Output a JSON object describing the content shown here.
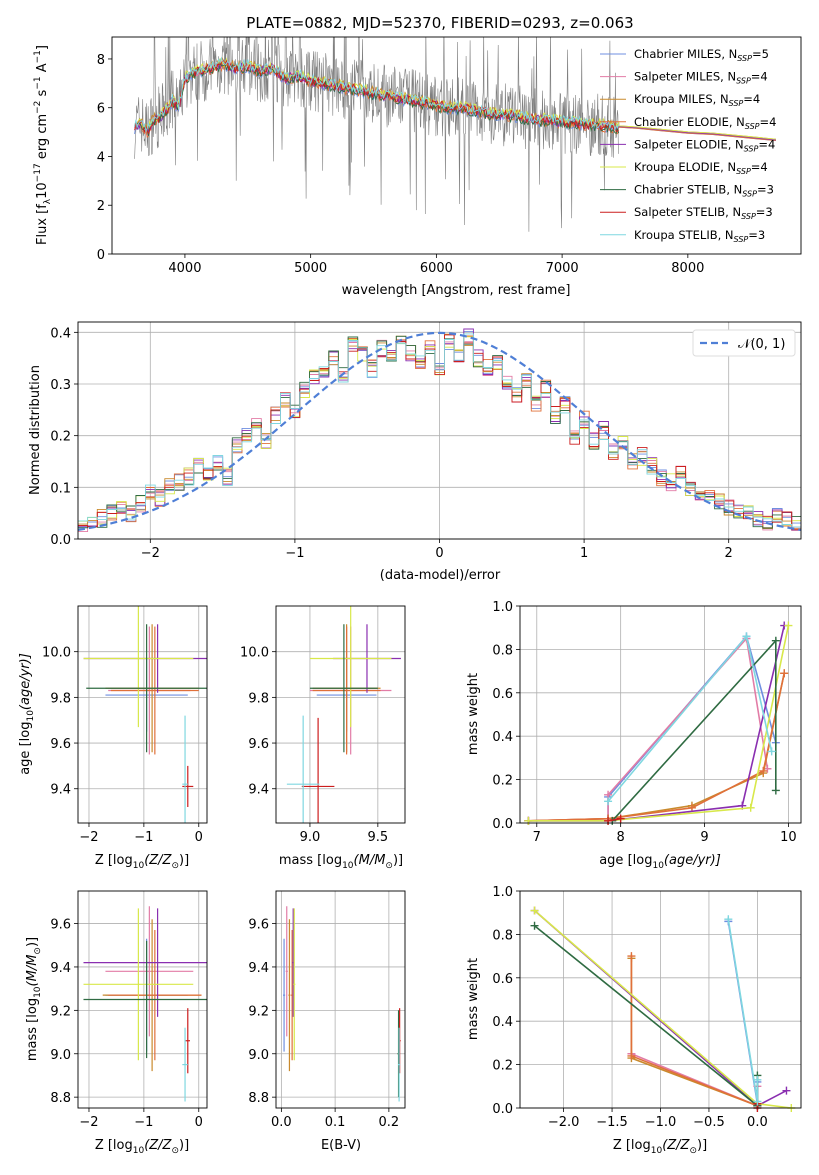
{
  "figure": {
    "title": "PLATE=0882, MJD=52370, FIBERID=0293, z=0.063"
  },
  "colors": {
    "chabrier_miles": "#6f8fe0",
    "salpeter_miles": "#e27ca6",
    "kroupa_miles": "#c98a2d",
    "chabrier_elodie": "#e0703a",
    "salpeter_elodie": "#8a2fb0",
    "kroupa_elodie": "#d8e84a",
    "chabrier_stelib": "#2f6b42",
    "salpeter_stelib": "#cc1e1e",
    "kroupa_stelib": "#7fd7e0",
    "data": "#7f7f7f",
    "normal": "#4f7fd6"
  },
  "chart_data": [
    {
      "id": "spectrum",
      "type": "line",
      "title": "PLATE=0882, MJD=52370, FIBERID=0293, z=0.063",
      "xlabel": "wavelength [Angstrom, rest frame]",
      "ylabel_main": "Flux [f",
      "ylabel_sub1": "λ",
      "ylabel_mid": "10",
      "ylabel_sup1": "−17",
      "ylabel_mid2": " erg cm",
      "ylabel_sup2": "−2",
      "ylabel_mid3": " s",
      "ylabel_sup3": "−1",
      "ylabel_mid4": " A",
      "ylabel_sup4": "−1",
      "ylabel_end": "]",
      "xlim": [
        3420,
        8900
      ],
      "ylim": [
        0,
        8.9
      ],
      "xticks": [
        4000,
        5000,
        6000,
        7000,
        8000
      ],
      "xtick_labels": [
        "4000",
        "5000",
        "6000",
        "7000",
        "8000"
      ],
      "yticks": [
        0,
        2,
        4,
        6,
        8
      ],
      "ytick_labels": [
        "0",
        "2",
        "4",
        "6",
        "8"
      ],
      "legend_position": "upper-right",
      "legend": [
        {
          "name": "Chabrier MILES, N",
          "sub": "SSP",
          "tail": "=5",
          "color": "#6f8fe0"
        },
        {
          "name": "Salpeter MILES, N",
          "sub": "SSP",
          "tail": "=4",
          "color": "#e27ca6"
        },
        {
          "name": "Kroupa MILES, N",
          "sub": "SSP",
          "tail": "=4",
          "color": "#c98a2d"
        },
        {
          "name": "Chabrier ELODIE, N",
          "sub": "SSP",
          "tail": "=4",
          "color": "#e0703a"
        },
        {
          "name": "Salpeter ELODIE, N",
          "sub": "SSP",
          "tail": "=4",
          "color": "#8a2fb0"
        },
        {
          "name": "Kroupa ELODIE, N",
          "sub": "SSP",
          "tail": "=4",
          "color": "#d8e84a"
        },
        {
          "name": "Chabrier STELIB, N",
          "sub": "SSP",
          "tail": "=3",
          "color": "#2f6b42"
        },
        {
          "name": "Salpeter STELIB, N",
          "sub": "SSP",
          "tail": "=3",
          "color": "#cc1e1e"
        },
        {
          "name": "Kroupa STELIB, N",
          "sub": "SSP",
          "tail": "=3",
          "color": "#7fd7e0"
        }
      ],
      "model_x": [
        3600,
        3650,
        3700,
        3750,
        3800,
        3850,
        3900,
        3950,
        4000,
        4100,
        4200,
        4300,
        4400,
        4500,
        4600,
        4700,
        4800,
        4900,
        5000,
        5100,
        5200,
        5300,
        5400,
        5500,
        5600,
        5700,
        5800,
        5900,
        6000,
        6100,
        6200,
        6300,
        6400,
        6500,
        6600,
        6700,
        6800,
        6900,
        7000,
        7100,
        7200,
        7300,
        7400,
        7450
      ],
      "model_y": [
        5.2,
        5.4,
        5.0,
        5.5,
        5.6,
        5.9,
        6.3,
        6.0,
        7.2,
        7.5,
        7.6,
        7.8,
        7.6,
        7.7,
        7.5,
        7.6,
        7.2,
        7.3,
        7.1,
        7.0,
        6.9,
        6.8,
        6.7,
        6.6,
        6.5,
        6.4,
        6.3,
        6.2,
        6.1,
        6.0,
        6.0,
        5.9,
        5.8,
        5.7,
        5.7,
        5.6,
        5.5,
        5.5,
        5.4,
        5.4,
        5.3,
        5.3,
        5.2,
        5.2
      ],
      "model_ext_x": [
        7450,
        7600,
        7800,
        8000,
        8200,
        8400,
        8600,
        8700
      ],
      "model_ext_y": [
        5.2,
        5.15,
        5.05,
        4.95,
        4.9,
        4.8,
        4.7,
        4.65
      ],
      "data_x_range": [
        3600,
        7450
      ]
    },
    {
      "id": "residuals",
      "type": "step",
      "xlabel": "(data-model)/error",
      "ylabel": "Normed distribution",
      "xlim": [
        -2.5,
        2.5
      ],
      "ylim": [
        0,
        0.42
      ],
      "xticks": [
        -2,
        -1,
        0,
        1,
        2
      ],
      "xtick_labels": [
        "−2",
        "−1",
        "0",
        "1",
        "2"
      ],
      "yticks": [
        0.0,
        0.1,
        0.2,
        0.3,
        0.4
      ],
      "ytick_labels": [
        "0.0",
        "0.1",
        "0.2",
        "0.3",
        "0.4"
      ],
      "legend": [
        {
          "name": "𝒩(0, 1)",
          "color": "#4f7fd6",
          "style": "dashed"
        }
      ],
      "legend_position": "upper-right",
      "bin_width": 0.1,
      "bin_start": -2.5,
      "base_hist": [
        0.02,
        0.03,
        0.04,
        0.05,
        0.06,
        0.05,
        0.07,
        0.09,
        0.08,
        0.1,
        0.11,
        0.12,
        0.14,
        0.13,
        0.15,
        0.12,
        0.18,
        0.2,
        0.22,
        0.19,
        0.24,
        0.27,
        0.25,
        0.29,
        0.31,
        0.33,
        0.35,
        0.32,
        0.38,
        0.36,
        0.33,
        0.37,
        0.35,
        0.38,
        0.36,
        0.34,
        0.37,
        0.33,
        0.38,
        0.36,
        0.39,
        0.35,
        0.33,
        0.34,
        0.3,
        0.28,
        0.31,
        0.26,
        0.29,
        0.24,
        0.26,
        0.2,
        0.23,
        0.19,
        0.21,
        0.17,
        0.19,
        0.15,
        0.16,
        0.14,
        0.12,
        0.11,
        0.13,
        0.1,
        0.08,
        0.09,
        0.07,
        0.06,
        0.05,
        0.05,
        0.04,
        0.03,
        0.05,
        0.04,
        0.03
      ]
    },
    {
      "id": "z-age",
      "type": "errorbar",
      "xlabel": "Z [log",
      "xlabel_sub": "10",
      "xlabel_tail": "(Z/Z",
      "xlabel_sub2": "⊙",
      "xlabel_end": ")]",
      "ylabel": "age  [log",
      "ylabel_sub": "10",
      "ylabel_tail": "(age/yr)]",
      "xlim": [
        -2.2,
        0.15
      ],
      "ylim": [
        9.25,
        10.2
      ],
      "xticks": [
        -2,
        -1,
        0
      ],
      "xtick_labels": [
        "−2",
        "−1",
        "0"
      ],
      "yticks": [
        9.4,
        9.6,
        9.8,
        10.0
      ],
      "ytick_labels": [
        "9.4",
        "9.6",
        "9.8",
        "10.0"
      ],
      "points": [
        {
          "x": -0.95,
          "y": 9.81,
          "xerr": 0.75,
          "yerr": 0.16,
          "color": "#6f8fe0"
        },
        {
          "x": -0.9,
          "y": 9.83,
          "xerr": 0.75,
          "yerr": 0.28,
          "color": "#e27ca6"
        },
        {
          "x": -0.85,
          "y": 9.84,
          "xerr": 0.85,
          "yerr": 0.28,
          "color": "#c98a2d"
        },
        {
          "x": -0.8,
          "y": 9.83,
          "xerr": 0.8,
          "yerr": 0.28,
          "color": "#e0703a"
        },
        {
          "x": -0.75,
          "y": 9.97,
          "xerr": 1.35,
          "yerr": 0.15,
          "color": "#8a2fb0"
        },
        {
          "x": -1.1,
          "y": 9.97,
          "xerr": 1.0,
          "yerr": 0.3,
          "color": "#d8e84a"
        },
        {
          "x": -0.95,
          "y": 9.84,
          "xerr": 1.1,
          "yerr": 0.28,
          "color": "#2f6b42"
        },
        {
          "x": -0.2,
          "y": 9.41,
          "xerr": 0.1,
          "yerr": 0.09,
          "color": "#cc1e1e"
        },
        {
          "x": -0.25,
          "y": 9.42,
          "xerr": 0.05,
          "yerr": 0.3,
          "color": "#7fd7e0"
        }
      ]
    },
    {
      "id": "mass-age",
      "type": "errorbar",
      "xlabel": "mass [log",
      "xlabel_sub": "10",
      "xlabel_tail": "(M/M",
      "xlabel_sub2": "⊙",
      "xlabel_end": ")]",
      "xlim": [
        8.75,
        9.7
      ],
      "ylim": [
        9.25,
        10.2
      ],
      "xticks": [
        9.0,
        9.5
      ],
      "xtick_labels": [
        "9.0",
        "9.5"
      ],
      "yticks": [
        9.4,
        9.6,
        9.8,
        10.0
      ],
      "ytick_labels": [
        "9.4",
        "9.6",
        "9.8",
        "10.0"
      ],
      "points": [
        {
          "x": 9.27,
          "y": 9.81,
          "xerr": 0.22,
          "yerr": 0.16,
          "color": "#6f8fe0"
        },
        {
          "x": 9.3,
          "y": 9.83,
          "xerr": 0.3,
          "yerr": 0.28,
          "color": "#e27ca6"
        },
        {
          "x": 9.27,
          "y": 9.84,
          "xerr": 0.25,
          "yerr": 0.28,
          "color": "#c98a2d"
        },
        {
          "x": 9.27,
          "y": 9.83,
          "xerr": 0.25,
          "yerr": 0.28,
          "color": "#e0703a"
        },
        {
          "x": 9.42,
          "y": 9.97,
          "xerr": 0.25,
          "yerr": 0.15,
          "color": "#8a2fb0"
        },
        {
          "x": 9.3,
          "y": 9.97,
          "xerr": 0.3,
          "yerr": 0.3,
          "color": "#d8e84a"
        },
        {
          "x": 9.25,
          "y": 9.84,
          "xerr": 0.25,
          "yerr": 0.28,
          "color": "#2f6b42"
        },
        {
          "x": 9.06,
          "y": 9.41,
          "xerr": 0.12,
          "yerr": 0.3,
          "color": "#cc1e1e"
        },
        {
          "x": 8.95,
          "y": 9.42,
          "xerr": 0.12,
          "yerr": 0.3,
          "color": "#7fd7e0"
        }
      ]
    },
    {
      "id": "age-weight",
      "type": "line",
      "xlabel": "age  [log",
      "xlabel_sub": "10",
      "xlabel_tail": "(age/yr)]",
      "ylabel": "mass weight",
      "xlim": [
        6.8,
        10.15
      ],
      "ylim": [
        0,
        1.0
      ],
      "xticks": [
        7,
        8,
        9,
        10
      ],
      "xtick_labels": [
        "7",
        "8",
        "9",
        "10"
      ],
      "yticks": [
        0.0,
        0.2,
        0.4,
        0.6,
        0.8,
        1.0
      ],
      "ytick_labels": [
        "0.0",
        "0.2",
        "0.4",
        "0.6",
        "0.8",
        "1.0"
      ],
      "series": [
        {
          "color": "#6f8fe0",
          "x": [
            6.9,
            7.85,
            7.85,
            9.5,
            9.85
          ],
          "y": [
            0.01,
            0.01,
            0.12,
            0.86,
            0.37
          ]
        },
        {
          "color": "#e27ca6",
          "x": [
            6.9,
            7.85,
            7.85,
            9.5,
            9.75
          ],
          "y": [
            0.01,
            0.02,
            0.13,
            0.85,
            0.25
          ]
        },
        {
          "color": "#c98a2d",
          "x": [
            6.9,
            7.85,
            8.85,
            9.7,
            9.95
          ],
          "y": [
            0.01,
            0.02,
            0.08,
            0.23,
            0.69
          ]
        },
        {
          "color": "#e0703a",
          "x": [
            6.9,
            7.85,
            8.85,
            9.7,
            9.95
          ],
          "y": [
            0.01,
            0.02,
            0.07,
            0.24,
            0.69
          ]
        },
        {
          "color": "#8a2fb0",
          "x": [
            6.9,
            7.85,
            9.45,
            9.95
          ],
          "y": [
            0.01,
            0.01,
            0.08,
            0.91
          ]
        },
        {
          "color": "#d8e84a",
          "x": [
            6.9,
            7.85,
            9.55,
            10.0
          ],
          "y": [
            0.01,
            0.01,
            0.07,
            0.91
          ]
        },
        {
          "color": "#2f6b42",
          "x": [
            7.9,
            9.85,
            9.85
          ],
          "y": [
            0.01,
            0.84,
            0.15
          ]
        },
        {
          "color": "#cc1e1e",
          "x": [
            7.85,
            8.0
          ],
          "y": [
            0.01,
            0.02
          ]
        },
        {
          "color": "#7fd7e0",
          "x": [
            7.85,
            9.5,
            9.8
          ],
          "y": [
            0.1,
            0.86,
            0.33
          ]
        }
      ]
    },
    {
      "id": "z-mass",
      "type": "errorbar",
      "xlabel": "Z [log",
      "xlabel_sub": "10",
      "xlabel_tail": "(Z/Z",
      "xlabel_sub2": "⊙",
      "xlabel_end": ")]",
      "ylabel": "mass [log",
      "ylabel_sub": "10",
      "ylabel_tail": "(M/M",
      "ylabel_sub2": "⊙",
      "ylabel_end": ")]",
      "xlim": [
        -2.2,
        0.15
      ],
      "ylim": [
        8.75,
        9.75
      ],
      "xticks": [
        -2,
        -1,
        0
      ],
      "xtick_labels": [
        "−2",
        "−1",
        "0"
      ],
      "yticks": [
        8.8,
        9.0,
        9.2,
        9.4,
        9.6
      ],
      "ytick_labels": [
        "8.8",
        "9.0",
        "9.2",
        "9.4",
        "9.6"
      ],
      "points": [
        {
          "x": -0.95,
          "y": 9.27,
          "xerr": 0.75,
          "yerr": 0.26,
          "color": "#6f8fe0"
        },
        {
          "x": -0.9,
          "y": 9.38,
          "xerr": 0.8,
          "yerr": 0.3,
          "color": "#e27ca6"
        },
        {
          "x": -0.85,
          "y": 9.27,
          "xerr": 0.9,
          "yerr": 0.35,
          "color": "#c98a2d"
        },
        {
          "x": -0.8,
          "y": 9.27,
          "xerr": 0.85,
          "yerr": 0.3,
          "color": "#e0703a"
        },
        {
          "x": -0.75,
          "y": 9.42,
          "xerr": 1.35,
          "yerr": 0.25,
          "color": "#8a2fb0"
        },
        {
          "x": -1.1,
          "y": 9.32,
          "xerr": 1.0,
          "yerr": 0.35,
          "color": "#d8e84a"
        },
        {
          "x": -0.95,
          "y": 9.25,
          "xerr": 1.15,
          "yerr": 0.27,
          "color": "#2f6b42"
        },
        {
          "x": -0.2,
          "y": 9.06,
          "xerr": 0.04,
          "yerr": 0.15,
          "color": "#cc1e1e"
        },
        {
          "x": -0.25,
          "y": 8.95,
          "xerr": 0.05,
          "yerr": 0.17,
          "color": "#7fd7e0"
        }
      ]
    },
    {
      "id": "ebv-mass",
      "type": "errorbar",
      "xlabel": "E(B-V)",
      "xlim": [
        -0.01,
        0.23
      ],
      "ylim": [
        8.75,
        9.75
      ],
      "xticks": [
        0.0,
        0.1,
        0.2
      ],
      "xtick_labels": [
        "0.0",
        "0.1",
        "0.2"
      ],
      "yticks": [
        8.8,
        9.0,
        9.2,
        9.4,
        9.6
      ],
      "ytick_labels": [
        "8.8",
        "9.0",
        "9.2",
        "9.4",
        "9.6"
      ],
      "points": [
        {
          "x": 0.005,
          "y": 9.27,
          "xerr": 0.002,
          "yerr": 0.26,
          "color": "#6f8fe0"
        },
        {
          "x": 0.01,
          "y": 9.38,
          "xerr": 0.002,
          "yerr": 0.3,
          "color": "#e27ca6"
        },
        {
          "x": 0.015,
          "y": 9.27,
          "xerr": 0.002,
          "yerr": 0.35,
          "color": "#c98a2d"
        },
        {
          "x": 0.02,
          "y": 9.27,
          "xerr": 0.002,
          "yerr": 0.3,
          "color": "#e0703a"
        },
        {
          "x": 0.022,
          "y": 9.42,
          "xerr": 0.002,
          "yerr": 0.25,
          "color": "#8a2fb0"
        },
        {
          "x": 0.024,
          "y": 9.32,
          "xerr": 0.002,
          "yerr": 0.35,
          "color": "#d8e84a"
        },
        {
          "x": 0.218,
          "y": 9.0,
          "xerr": 0.002,
          "yerr": 0.2,
          "color": "#2f6b42"
        },
        {
          "x": 0.22,
          "y": 9.06,
          "xerr": 0.002,
          "yerr": 0.15,
          "color": "#cc1e1e"
        },
        {
          "x": 0.219,
          "y": 8.95,
          "xerr": 0.002,
          "yerr": 0.17,
          "color": "#7fd7e0"
        }
      ]
    },
    {
      "id": "z-weight",
      "type": "line",
      "xlabel": "Z [log",
      "xlabel_sub": "10",
      "xlabel_tail": "(Z/Z",
      "xlabel_sub2": "⊙",
      "xlabel_end": ")]",
      "ylabel": "mass weight",
      "xlim": [
        -2.45,
        0.45
      ],
      "ylim": [
        0,
        1.0
      ],
      "xticks": [
        -2.0,
        -1.5,
        -1.0,
        -0.5,
        0.0
      ],
      "xtick_labels": [
        "−2.0",
        "−1.5",
        "−1.0",
        "−0.5",
        "0.0"
      ],
      "yticks": [
        0.0,
        0.2,
        0.4,
        0.6,
        0.8,
        1.0
      ],
      "ytick_labels": [
        "0.0",
        "0.2",
        "0.4",
        "0.6",
        "0.8",
        "1.0"
      ],
      "series": [
        {
          "color": "#6f8fe0",
          "x": [
            -0.3,
            0.0,
            0.0
          ],
          "y": [
            0.86,
            0.02,
            0.12
          ]
        },
        {
          "color": "#e27ca6",
          "x": [
            -1.3,
            0.0,
            0.0
          ],
          "y": [
            0.25,
            0.01,
            0.1
          ]
        },
        {
          "color": "#c98a2d",
          "x": [
            -1.3,
            -1.3,
            0.0
          ],
          "y": [
            0.69,
            0.23,
            0.01
          ]
        },
        {
          "color": "#e0703a",
          "x": [
            -1.3,
            -1.3,
            0.0
          ],
          "y": [
            0.7,
            0.24,
            0.01
          ]
        },
        {
          "color": "#8a2fb0",
          "x": [
            -2.3,
            0.0,
            0.3
          ],
          "y": [
            0.91,
            0.01,
            0.08
          ]
        },
        {
          "color": "#d8e84a",
          "x": [
            -2.3,
            0.0,
            0.35
          ],
          "y": [
            0.91,
            0.02,
            0.0
          ]
        },
        {
          "color": "#2f6b42",
          "x": [
            -2.3,
            0.0,
            0.0
          ],
          "y": [
            0.84,
            0.01,
            0.15
          ]
        },
        {
          "color": "#cc1e1e",
          "x": [
            0.0,
            0.0
          ],
          "y": [
            0.0,
            0.02
          ]
        },
        {
          "color": "#7fd7e0",
          "x": [
            -0.3,
            0.0,
            0.0
          ],
          "y": [
            0.87,
            0.03,
            0.13
          ]
        }
      ]
    }
  ]
}
